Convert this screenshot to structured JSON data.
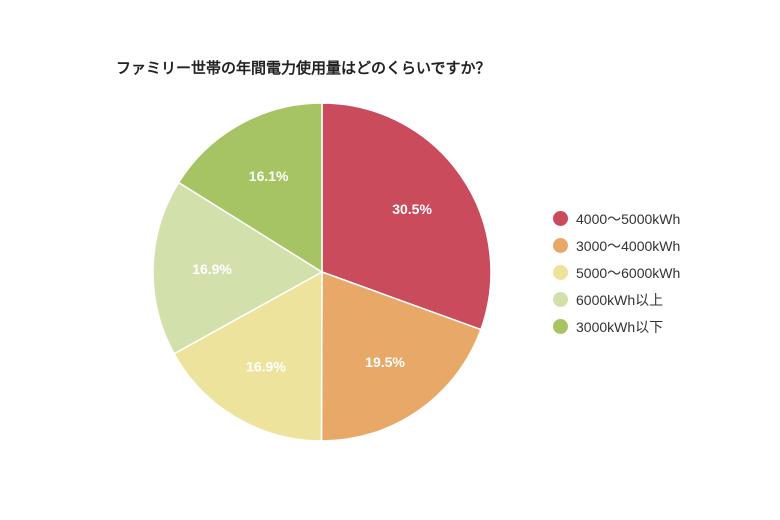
{
  "chart_data": {
    "type": "pie",
    "title": "ファミリー世帯の年間電力使用量はどのくらいですか？",
    "categories": [
      "4000〜5000kWh",
      "3000〜4000kWh",
      "5000〜6000kWh",
      "6000kWh以上",
      "3000kWh以下"
    ],
    "values": [
      30.5,
      19.5,
      16.9,
      16.9,
      16.1
    ],
    "value_labels": [
      "30.5%",
      "19.5%",
      "16.9%",
      "16.9%",
      "16.1%"
    ],
    "colors": [
      "#c94b5c",
      "#e8a968",
      "#ede39d",
      "#d2e1ac",
      "#a7c464"
    ],
    "legend_placement": "right",
    "start_angle": "top",
    "direction": "clockwise"
  }
}
